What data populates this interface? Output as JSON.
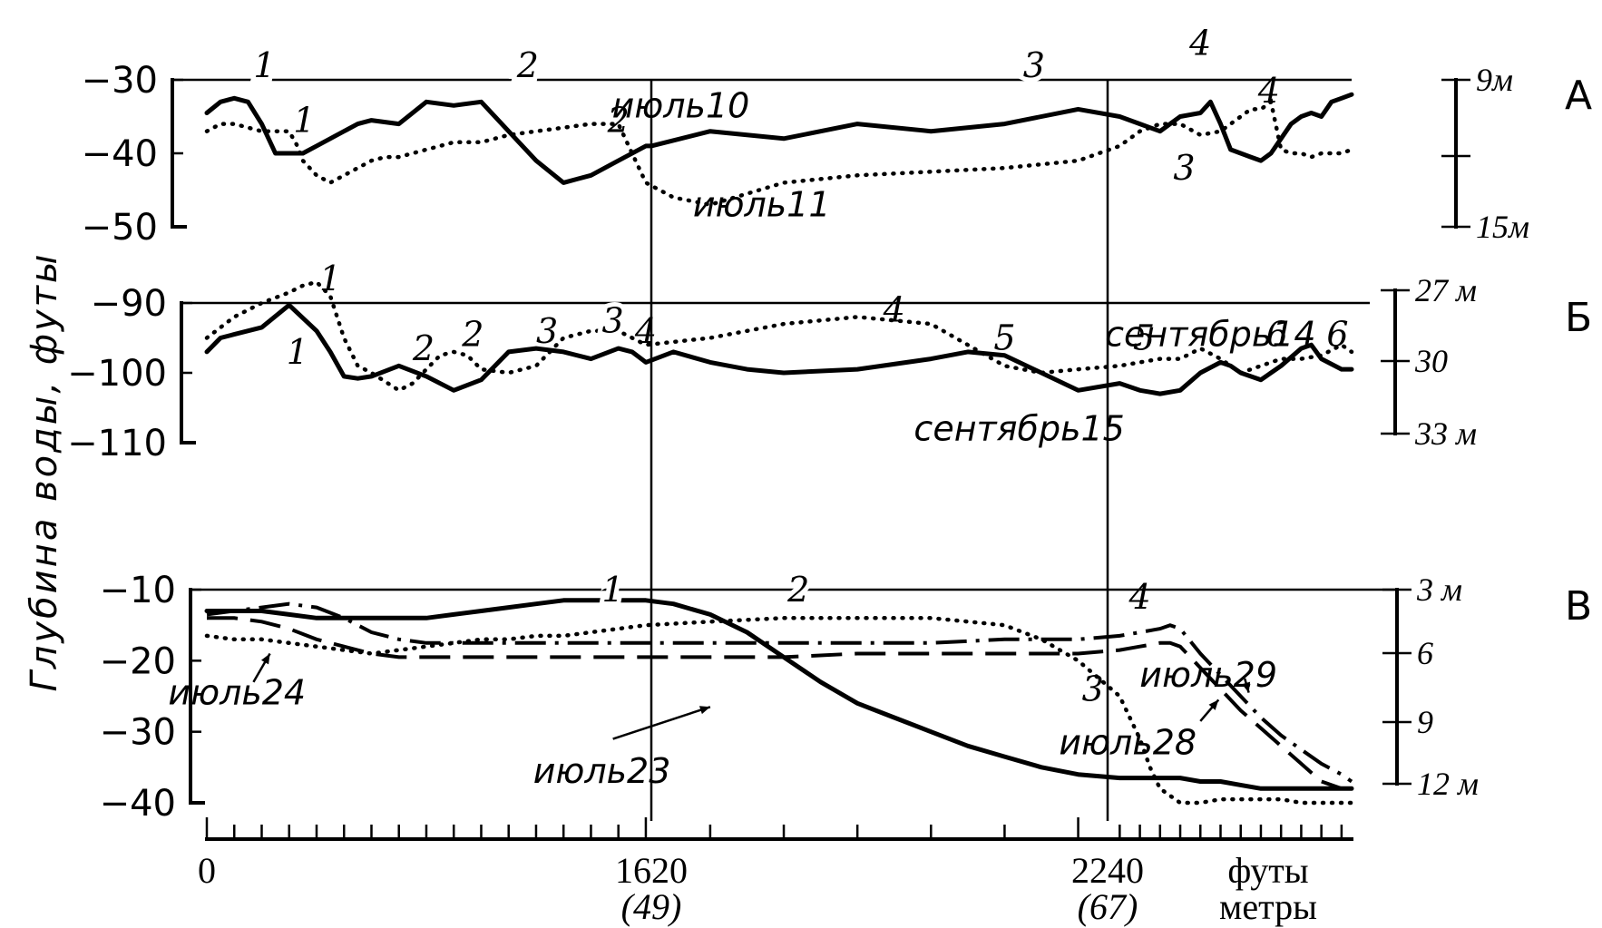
{
  "ylabel": "Глубина воды, футы",
  "x_axis": {
    "ticks": [
      {
        "value": 0,
        "label": "0",
        "sub": ""
      },
      {
        "value": 1620,
        "label": "1620",
        "sub": "(49)"
      },
      {
        "value": 2240,
        "label": "2240",
        "sub": "(67)"
      }
    ],
    "unit_feet": "футы",
    "unit_meters": "метры"
  },
  "chart_data": [
    {
      "panel": "А",
      "type": "line",
      "ylim": [
        -50,
        -30
      ],
      "yticks": [
        "-30",
        "-40",
        "-50"
      ],
      "right_ticks": [
        "9м",
        "",
        "15м"
      ],
      "series": [
        {
          "name": "июль10",
          "style": "solid",
          "x": [
            0,
            50,
            100,
            150,
            200,
            250,
            300,
            350,
            400,
            500,
            550,
            600,
            700,
            800,
            900,
            1000,
            1100,
            1200,
            1300,
            1400,
            1500,
            1600,
            1620,
            1700,
            1800,
            1900,
            2000,
            2100,
            2200,
            2300,
            2400,
            2500,
            2600,
            2700,
            2750,
            2800,
            2850,
            2900,
            2950,
            3000,
            3050,
            3100,
            3150,
            3200,
            3250,
            3300,
            3350,
            3400,
            3450
          ],
          "y": [
            -34.5,
            -33,
            -32.5,
            -33,
            -36,
            -40,
            -40,
            -40,
            -39,
            -37,
            -36,
            -35.5,
            -36,
            -33,
            -33.5,
            -33,
            -37,
            -41,
            -44,
            -43,
            -41,
            -39,
            -39,
            -37,
            -38,
            -36,
            -37,
            -36,
            -34,
            -35,
            -36,
            -37,
            -35,
            -34.5,
            -33,
            -36,
            -39.5,
            -40,
            -40.5,
            -41,
            -40,
            -38,
            -36,
            -35,
            -34.5,
            -35,
            -33,
            -32.5,
            -32
          ]
        },
        {
          "name": "июль11",
          "style": "dotted",
          "x": [
            0,
            50,
            100,
            200,
            300,
            330,
            350,
            400,
            450,
            500,
            550,
            600,
            650,
            700,
            750,
            800,
            850,
            900,
            1000,
            1100,
            1200,
            1300,
            1400,
            1500,
            1550,
            1600,
            1650,
            1700,
            1800,
            1900,
            2000,
            2100,
            2200,
            2300,
            2400,
            2500,
            2600,
            2700,
            2800,
            2850,
            2900,
            2950,
            3000,
            3050,
            3100,
            3150,
            3200,
            3250,
            3300,
            3350,
            3400,
            3450
          ],
          "y": [
            -37,
            -36,
            -36,
            -37,
            -37,
            -39,
            -41,
            -43,
            -44,
            -43,
            -42,
            -41,
            -40.5,
            -40.5,
            -40,
            -39.5,
            -39,
            -38.5,
            -38.5,
            -37.5,
            -37,
            -36.5,
            -36,
            -36,
            -40,
            -44,
            -46,
            -47,
            -44,
            -43,
            -42.5,
            -42,
            -41,
            -39,
            -37,
            -36,
            -36,
            -37.5,
            -37,
            -36,
            -35,
            -34,
            -34,
            -33,
            -39.5,
            -40,
            -40,
            -40.5,
            -40,
            -40,
            -40,
            -39.5
          ]
        }
      ],
      "annotations": [
        {
          "text": "1",
          "x": 210,
          "y": -28,
          "on": "axis"
        },
        {
          "text": "2",
          "x": 1170,
          "y": -28,
          "on": "axis"
        },
        {
          "text": "3",
          "x": 2140,
          "y": -28,
          "on": "axis"
        },
        {
          "text": "4",
          "x": 2700,
          "y": -25,
          "on": "peak"
        },
        {
          "text": "4",
          "x": 3040,
          "y": -31.5,
          "on": "curve"
        },
        {
          "text": "1",
          "x": 355,
          "y": -35.5,
          "on": "curve"
        },
        {
          "text": "2",
          "x": 1500,
          "y": -35.5,
          "on": "curve"
        },
        {
          "text": "3",
          "x": 2620,
          "y": -42,
          "on": "curve"
        },
        {
          "text": "июль10",
          "x": 1660,
          "y": -33.5,
          "on": "label"
        },
        {
          "text": "июль11",
          "x": 1770,
          "y": -47,
          "on": "label"
        }
      ]
    },
    {
      "panel": "Б",
      "type": "line",
      "ylim": [
        -110,
        -90
      ],
      "yticks": [
        "-90",
        "-100",
        "-110"
      ],
      "right_ticks": [
        "27 м",
        "30",
        "33 м"
      ],
      "series": [
        {
          "name": "сентябрь15",
          "style": "solid",
          "x": [
            0,
            50,
            100,
            200,
            300,
            400,
            450,
            500,
            550,
            600,
            700,
            800,
            900,
            1000,
            1100,
            1200,
            1300,
            1400,
            1500,
            1550,
            1600,
            1650,
            1700,
            1750,
            1800,
            1900,
            2000,
            2050,
            2100,
            2150,
            2200,
            2300,
            2400,
            2500,
            2600,
            2700,
            2800,
            2850,
            2900,
            3000,
            3100,
            3200,
            3250,
            3300,
            3400,
            3450
          ],
          "y": [
            -97,
            -95,
            -94.5,
            -93.5,
            -90.3,
            -94,
            -97,
            -100.5,
            -100.8,
            -100.5,
            -99,
            -100.5,
            -102.5,
            -101,
            -97,
            -96.5,
            -97,
            -98,
            -96.5,
            -97,
            -98.5,
            -97,
            -98.5,
            -99.5,
            -100,
            -99.5,
            -98,
            -97,
            -97.5,
            -100,
            -102.5,
            -101.5,
            -102.5,
            -103,
            -102.5,
            -100,
            -98.5,
            -99,
            -100,
            -101,
            -99,
            -96.5,
            -96,
            -98,
            -99.5,
            -99.5
          ]
        },
        {
          "name": "сентябрь14",
          "style": "dotted",
          "x": [
            0,
            100,
            200,
            300,
            350,
            400,
            450,
            500,
            550,
            600,
            700,
            750,
            800,
            850,
            900,
            950,
            1000,
            1100,
            1200,
            1300,
            1400,
            1500,
            1600,
            1700,
            1800,
            1900,
            2000,
            2050,
            2100,
            2150,
            2200,
            2300,
            2400,
            2500,
            2600,
            2700,
            2800,
            2900,
            3000,
            3100,
            3200,
            3300,
            3400,
            3450
          ],
          "y": [
            -95,
            -92,
            -90,
            -88.5,
            -87.5,
            -87,
            -89,
            -95,
            -99,
            -100,
            -102.5,
            -101.5,
            -99.5,
            -97.5,
            -97,
            -97.5,
            -99.5,
            -100,
            -99,
            -95,
            -94,
            -94,
            -96,
            -95,
            -93,
            -92,
            -93,
            -96,
            -99,
            -100,
            -99.5,
            -99,
            -98.5,
            -98,
            -98,
            -96.5,
            -98,
            -100,
            -99,
            -98,
            -98,
            -97.5,
            -96,
            -97
          ]
        }
      ],
      "annotations": [
        {
          "text": "1",
          "x": 450,
          "y": -86.5,
          "on": "curve"
        },
        {
          "text": "1",
          "x": 330,
          "y": -97,
          "on": "curve"
        },
        {
          "text": "2",
          "x": 790,
          "y": -96.5,
          "on": "curve"
        },
        {
          "text": "2",
          "x": 970,
          "y": -94.5,
          "on": "curve"
        },
        {
          "text": "3",
          "x": 1240,
          "y": -94,
          "on": "curve"
        },
        {
          "text": "3",
          "x": 1480,
          "y": -92.5,
          "on": "axis"
        },
        {
          "text": "4",
          "x": 1600,
          "y": -94,
          "on": "curve"
        },
        {
          "text": "4",
          "x": 1950,
          "y": -91,
          "on": "curve"
        },
        {
          "text": "5",
          "x": 2100,
          "y": -95,
          "on": "curve"
        },
        {
          "text": "5",
          "x": 2420,
          "y": -95,
          "on": "curve"
        },
        {
          "text": "6",
          "x": 3080,
          "y": -94.5,
          "on": "curve"
        },
        {
          "text": "6",
          "x": 3380,
          "y": -94.5,
          "on": "curve"
        },
        {
          "text": "сентябрь14",
          "x": 2750,
          "y": -94.5,
          "on": "label"
        },
        {
          "text": "сентябрь15",
          "x": 2120,
          "y": -108,
          "on": "label"
        }
      ]
    },
    {
      "panel": "В",
      "type": "line",
      "ylim": [
        -40,
        -10
      ],
      "yticks": [
        "-10",
        "-20",
        "-30",
        "-40"
      ],
      "right_ticks": [
        "3 м",
        "6",
        "9",
        "12 м"
      ],
      "series": [
        {
          "name": "июль23",
          "style": "solid",
          "x": [
            0,
            100,
            200,
            300,
            400,
            500,
            600,
            700,
            800,
            900,
            1000,
            1100,
            1200,
            1300,
            1400,
            1500,
            1550,
            1600,
            1650,
            1700,
            1750,
            1800,
            1850,
            1900,
            1950,
            2000,
            2050,
            2100,
            2150,
            2200,
            2300,
            2400,
            2500,
            2600,
            2700,
            2800,
            2900,
            3000,
            3100,
            3200,
            3300,
            3400,
            3450
          ],
          "y": [
            -13,
            -13,
            -13,
            -13.5,
            -14,
            -14,
            -14,
            -14,
            -14,
            -13.5,
            -13,
            -12.5,
            -12,
            -11.5,
            -11.5,
            -11.5,
            -11.5,
            -11.5,
            -12,
            -13.5,
            -16,
            -19.5,
            -23,
            -26,
            -28,
            -30,
            -32,
            -33.5,
            -35,
            -36,
            -36.5,
            -36.5,
            -36.5,
            -36.5,
            -37,
            -37,
            -37.5,
            -38,
            -38,
            -38,
            -38,
            -38,
            -38
          ]
        },
        {
          "name": "июль24",
          "style": "dotted",
          "x": [
            0,
            100,
            200,
            300,
            400,
            500,
            600,
            700,
            800,
            900,
            1000,
            1100,
            1200,
            1300,
            1400,
            1500,
            1600,
            1700,
            1800,
            1900,
            2000,
            2100,
            2150,
            2200,
            2300,
            2400,
            2450,
            2500,
            2550,
            2600,
            2700,
            2800,
            2900,
            3000,
            3100,
            3200,
            3300,
            3400,
            3450
          ],
          "y": [
            -16.5,
            -17,
            -17,
            -17.5,
            -18,
            -18.5,
            -19,
            -18.5,
            -18,
            -17.5,
            -17,
            -17,
            -16.5,
            -16.5,
            -16,
            -15.5,
            -15,
            -14.5,
            -14,
            -14,
            -14,
            -15,
            -17,
            -20,
            -25,
            -31,
            -35,
            -38,
            -39,
            -40,
            -40,
            -39.5,
            -39.5,
            -39.5,
            -39.5,
            -40,
            -40,
            -40,
            -40
          ]
        },
        {
          "name": "июль28",
          "style": "dashed",
          "x": [
            0,
            100,
            200,
            300,
            400,
            500,
            600,
            700,
            800,
            900,
            1000,
            1100,
            1200,
            1300,
            1400,
            1500,
            1600,
            1700,
            1800,
            1900,
            2000,
            2100,
            2200,
            2300,
            2400,
            2500,
            2550,
            2600,
            2700,
            2800,
            2900,
            3000,
            3100,
            3200,
            3300,
            3400,
            3450
          ],
          "y": [
            -14,
            -14,
            -14.5,
            -15.5,
            -17,
            -18,
            -19,
            -19.5,
            -19.5,
            -19.5,
            -19.5,
            -19.5,
            -19.5,
            -19.5,
            -19.5,
            -19.5,
            -19.5,
            -19.5,
            -19.5,
            -19,
            -19,
            -19,
            -19,
            -18.5,
            -18,
            -17.5,
            -17.5,
            -18,
            -21,
            -24,
            -27,
            -29.5,
            -32,
            -34.5,
            -37,
            -38,
            -38
          ]
        },
        {
          "name": "июль29",
          "style": "dashdot",
          "x": [
            0,
            100,
            200,
            300,
            400,
            500,
            600,
            700,
            800,
            900,
            1000,
            1100,
            1200,
            1300,
            1400,
            1500,
            1600,
            1700,
            1800,
            1900,
            2000,
            2100,
            2200,
            2300,
            2400,
            2500,
            2550,
            2600,
            2700,
            2800,
            2900,
            3000,
            3100,
            3200,
            3300,
            3400,
            3450
          ],
          "y": [
            -13.5,
            -13,
            -12.5,
            -12,
            -12.5,
            -14,
            -16,
            -17,
            -17.5,
            -17.5,
            -17.5,
            -17.5,
            -17.5,
            -17.5,
            -17.5,
            -17.5,
            -17.5,
            -17.5,
            -17.5,
            -17.5,
            -17.5,
            -17,
            -17,
            -16.5,
            -16,
            -15.5,
            -15,
            -15.5,
            -19,
            -22,
            -25,
            -28,
            -30.5,
            -32.5,
            -34.5,
            -36,
            -37
          ]
        }
      ],
      "annotations": [
        {
          "text": "1",
          "x": 1480,
          "y": -10,
          "on": "axis"
        },
        {
          "text": "2",
          "x": 1820,
          "y": -10,
          "on": "axis"
        },
        {
          "text": "3",
          "x": 2220,
          "y": -24,
          "on": "curve"
        },
        {
          "text": "4",
          "x": 2400,
          "y": -11,
          "on": "curve"
        },
        {
          "text": "июль24",
          "x": 110,
          "y": -24.5,
          "on": "label"
        },
        {
          "text": "июль23",
          "x": 1440,
          "y": -35.5,
          "on": "label"
        },
        {
          "text": "июль28",
          "x": 2340,
          "y": -31.5,
          "on": "label"
        },
        {
          "text": "июль29",
          "x": 2740,
          "y": -22,
          "on": "label"
        }
      ]
    }
  ]
}
